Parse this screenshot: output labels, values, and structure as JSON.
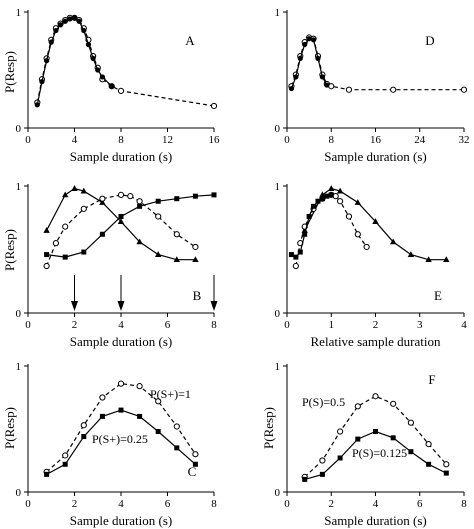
{
  "chart_data": [
    {
      "id": "A",
      "type": "line",
      "panel_label": "A",
      "xlabel": "Sample duration (s)",
      "ylabel": "P(Resp)",
      "xlim": [
        0,
        16
      ],
      "ylim": [
        0,
        1
      ],
      "xticks": [
        0,
        4,
        8,
        12,
        16
      ],
      "yticks": [
        0,
        1
      ],
      "xtick_labels": [
        "0",
        "4",
        "8",
        "12",
        "16"
      ],
      "ytick_labels": [
        "0",
        "1"
      ],
      "series": [
        {
          "style": "dashed",
          "marker": "open-circle",
          "x": [
            0.8,
            1.2,
            1.6,
            2.0,
            2.4,
            2.8,
            3.2,
            3.6,
            4.0,
            4.4,
            4.8,
            5.2,
            5.6,
            6.0,
            6.4,
            7.2,
            8.0,
            16.0
          ],
          "y": [
            0.22,
            0.42,
            0.6,
            0.76,
            0.86,
            0.9,
            0.93,
            0.95,
            0.95,
            0.93,
            0.86,
            0.76,
            0.62,
            0.52,
            0.42,
            0.36,
            0.32,
            0.19
          ]
        },
        {
          "style": "solid",
          "marker": "filled-circle",
          "x": [
            0.8,
            1.2,
            1.6,
            2.0,
            2.4,
            2.8,
            3.2,
            3.6,
            4.0,
            4.4,
            4.8,
            5.2,
            5.6,
            6.0,
            6.4,
            7.2
          ],
          "y": [
            0.2,
            0.4,
            0.58,
            0.74,
            0.84,
            0.89,
            0.92,
            0.94,
            0.95,
            0.92,
            0.84,
            0.72,
            0.6,
            0.5,
            0.44,
            0.36
          ]
        }
      ]
    },
    {
      "id": "D",
      "type": "line",
      "panel_label": "D",
      "xlabel": "Sample duration (s)",
      "ylabel": "",
      "xlim": [
        0,
        32
      ],
      "ylim": [
        0,
        1
      ],
      "xticks": [
        0,
        8,
        16,
        24,
        32
      ],
      "yticks": [
        0,
        1
      ],
      "xtick_labels": [
        "0",
        "8",
        "16",
        "24",
        "32"
      ],
      "ytick_labels": [
        "0",
        "1"
      ],
      "series": [
        {
          "style": "dashed",
          "marker": "open-circle",
          "x": [
            0.8,
            1.6,
            2.4,
            3.2,
            4.0,
            4.8,
            5.6,
            6.4,
            7.2,
            8.0,
            11.2,
            19.2,
            32.0
          ],
          "y": [
            0.36,
            0.46,
            0.62,
            0.74,
            0.78,
            0.77,
            0.62,
            0.46,
            0.38,
            0.36,
            0.33,
            0.33,
            0.33
          ]
        },
        {
          "style": "solid",
          "marker": "filled-circle",
          "x": [
            0.8,
            1.6,
            2.4,
            3.2,
            4.0,
            4.8,
            5.6,
            6.4,
            7.2
          ],
          "y": [
            0.34,
            0.44,
            0.6,
            0.72,
            0.77,
            0.76,
            0.6,
            0.44,
            0.37
          ]
        }
      ]
    },
    {
      "id": "B",
      "type": "line",
      "panel_label": "B",
      "xlabel": "Sample duration (s)",
      "ylabel": "P(Resp)",
      "xlim": [
        0,
        8
      ],
      "ylim": [
        0,
        1
      ],
      "xticks": [
        0,
        2,
        4,
        6,
        8
      ],
      "yticks": [
        0,
        1
      ],
      "xtick_labels": [
        "0",
        "2",
        "4",
        "6",
        "8"
      ],
      "ytick_labels": [
        "0",
        "1"
      ],
      "arrows_x": [
        2,
        4,
        8
      ],
      "series": [
        {
          "style": "solid",
          "marker": "filled-triangle",
          "x": [
            0.8,
            1.6,
            2.0,
            2.4,
            3.2,
            4.0,
            4.8,
            5.6,
            6.4,
            7.2
          ],
          "y": [
            0.65,
            0.93,
            0.98,
            0.96,
            0.87,
            0.72,
            0.56,
            0.46,
            0.42,
            0.42
          ]
        },
        {
          "style": "dashed",
          "marker": "open-circle",
          "x": [
            0.8,
            1.2,
            1.6,
            2.4,
            3.2,
            4.0,
            4.4,
            4.8,
            5.6,
            6.4,
            7.2
          ],
          "y": [
            0.37,
            0.55,
            0.68,
            0.82,
            0.9,
            0.93,
            0.92,
            0.88,
            0.76,
            0.62,
            0.52
          ]
        },
        {
          "style": "solid",
          "marker": "filled-square",
          "x": [
            0.8,
            1.6,
            2.4,
            3.2,
            4.0,
            4.8,
            5.6,
            6.4,
            7.2,
            8.0
          ],
          "y": [
            0.46,
            0.44,
            0.48,
            0.62,
            0.76,
            0.84,
            0.88,
            0.9,
            0.92,
            0.93
          ]
        }
      ]
    },
    {
      "id": "E",
      "type": "line",
      "panel_label": "E",
      "xlabel": "Relative sample duration",
      "ylabel": "",
      "xlim": [
        0,
        4
      ],
      "ylim": [
        0,
        1
      ],
      "xticks": [
        0,
        1,
        2,
        3,
        4
      ],
      "yticks": [
        0,
        1
      ],
      "xtick_labels": [
        "0",
        "1",
        "2",
        "3",
        "4"
      ],
      "ytick_labels": [
        "0",
        "1"
      ],
      "series": [
        {
          "style": "solid",
          "marker": "filled-triangle",
          "x": [
            0.4,
            0.8,
            1.0,
            1.2,
            1.6,
            2.0,
            2.4,
            2.8,
            3.2,
            3.6
          ],
          "y": [
            0.65,
            0.93,
            0.98,
            0.96,
            0.87,
            0.72,
            0.56,
            0.46,
            0.42,
            0.42
          ]
        },
        {
          "style": "dashed",
          "marker": "open-circle",
          "x": [
            0.2,
            0.3,
            0.4,
            0.6,
            0.8,
            1.0,
            1.1,
            1.2,
            1.4,
            1.6,
            1.8
          ],
          "y": [
            0.37,
            0.55,
            0.68,
            0.82,
            0.9,
            0.93,
            0.92,
            0.88,
            0.76,
            0.62,
            0.52
          ]
        },
        {
          "style": "solid",
          "marker": "filled-square",
          "x": [
            0.1,
            0.2,
            0.3,
            0.4,
            0.5,
            0.6,
            0.7,
            0.8,
            0.9,
            1.0
          ],
          "y": [
            0.46,
            0.44,
            0.48,
            0.62,
            0.76,
            0.84,
            0.88,
            0.9,
            0.92,
            0.93
          ]
        }
      ]
    },
    {
      "id": "C",
      "type": "line",
      "panel_label": "C",
      "xlabel": "Sample duration (s)",
      "ylabel": "P(Resp)",
      "xlim": [
        0,
        8
      ],
      "ylim": [
        0,
        1
      ],
      "xticks": [
        0,
        2,
        4,
        6,
        8
      ],
      "yticks": [
        0,
        1
      ],
      "xtick_labels": [
        "0",
        "2",
        "4",
        "6",
        "8"
      ],
      "ytick_labels": [
        "0",
        "1"
      ],
      "series": [
        {
          "name": "P(S+)=1",
          "style": "dashed",
          "marker": "open-circle",
          "x": [
            0.8,
            1.6,
            2.4,
            3.2,
            4.0,
            4.8,
            5.6,
            6.4,
            7.2
          ],
          "y": [
            0.16,
            0.29,
            0.53,
            0.75,
            0.86,
            0.84,
            0.72,
            0.52,
            0.3
          ]
        },
        {
          "name": "P(S+)=0.25",
          "style": "solid",
          "marker": "filled-square",
          "x": [
            0.8,
            1.6,
            2.4,
            3.2,
            4.0,
            4.8,
            5.6,
            6.4,
            7.2
          ],
          "y": [
            0.14,
            0.22,
            0.44,
            0.6,
            0.65,
            0.6,
            0.48,
            0.35,
            0.22
          ]
        }
      ]
    },
    {
      "id": "F",
      "type": "line",
      "panel_label": "F",
      "xlabel": "Sample duration (s)",
      "ylabel": "P(Resp)",
      "xlim": [
        0,
        8
      ],
      "ylim": [
        0,
        1
      ],
      "xticks": [
        0,
        2,
        4,
        6,
        8
      ],
      "yticks": [
        0,
        1
      ],
      "xtick_labels": [
        "0",
        "2",
        "4",
        "6",
        "8"
      ],
      "ytick_labels": [
        "0",
        "1"
      ],
      "series": [
        {
          "name": "P(S)=0.5",
          "style": "dashed",
          "marker": "open-circle",
          "x": [
            0.8,
            1.6,
            2.4,
            3.2,
            4.0,
            4.8,
            5.6,
            6.4,
            7.2
          ],
          "y": [
            0.12,
            0.25,
            0.48,
            0.68,
            0.76,
            0.7,
            0.55,
            0.38,
            0.22
          ]
        },
        {
          "name": "P(S)=0.125",
          "style": "solid",
          "marker": "filled-square",
          "x": [
            0.8,
            1.6,
            2.4,
            3.2,
            4.0,
            4.8,
            5.6,
            6.4,
            7.2
          ],
          "y": [
            0.1,
            0.14,
            0.27,
            0.42,
            0.48,
            0.43,
            0.32,
            0.22,
            0.15
          ]
        }
      ]
    }
  ]
}
